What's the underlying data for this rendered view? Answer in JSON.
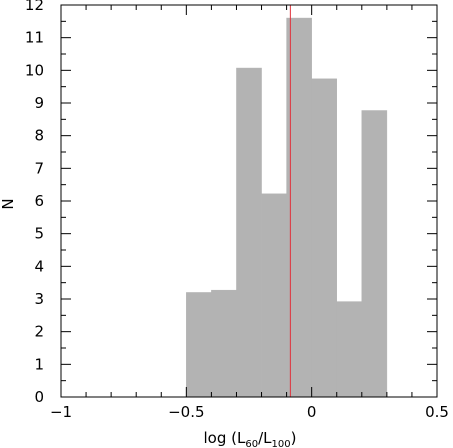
{
  "chart_data": {
    "type": "bar",
    "xlabel": "log (L60/L100)",
    "xlabel_parts": {
      "prefix": "log (L",
      "sub1": "60",
      "mid": "/L",
      "sub2": "100",
      "suffix": ")"
    },
    "ylabel": "N",
    "xlim": [
      -1,
      0.5
    ],
    "ylim": [
      0,
      12
    ],
    "x_ticks": [
      -1,
      -0.5,
      0,
      0.5
    ],
    "x_tick_labels": [
      "−1",
      "−0.5",
      "0",
      "0.5"
    ],
    "y_ticks": [
      0,
      1,
      2,
      3,
      4,
      5,
      6,
      7,
      8,
      9,
      10,
      11,
      12
    ],
    "y_tick_labels": [
      "0",
      "1",
      "2",
      "3",
      "4",
      "5",
      "6",
      "7",
      "8",
      "9",
      "10",
      "11",
      "12"
    ],
    "bins": [
      {
        "x0": -0.5,
        "x1": -0.4,
        "value": 3.2
      },
      {
        "x0": -0.4,
        "x1": -0.3,
        "value": 3.27
      },
      {
        "x0": -0.3,
        "x1": -0.2,
        "value": 10.07
      },
      {
        "x0": -0.2,
        "x1": -0.1,
        "value": 6.22
      },
      {
        "x0": -0.1,
        "x1": 0.0,
        "value": 11.6
      },
      {
        "x0": 0.0,
        "x1": 0.1,
        "value": 9.74
      },
      {
        "x0": 0.1,
        "x1": 0.2,
        "value": 2.92
      },
      {
        "x0": 0.2,
        "x1": 0.3,
        "value": 8.77
      }
    ],
    "reference_line_x": -0.085,
    "bar_color": "#b3b3b3",
    "line_color": "#e0303a",
    "grid": false
  }
}
